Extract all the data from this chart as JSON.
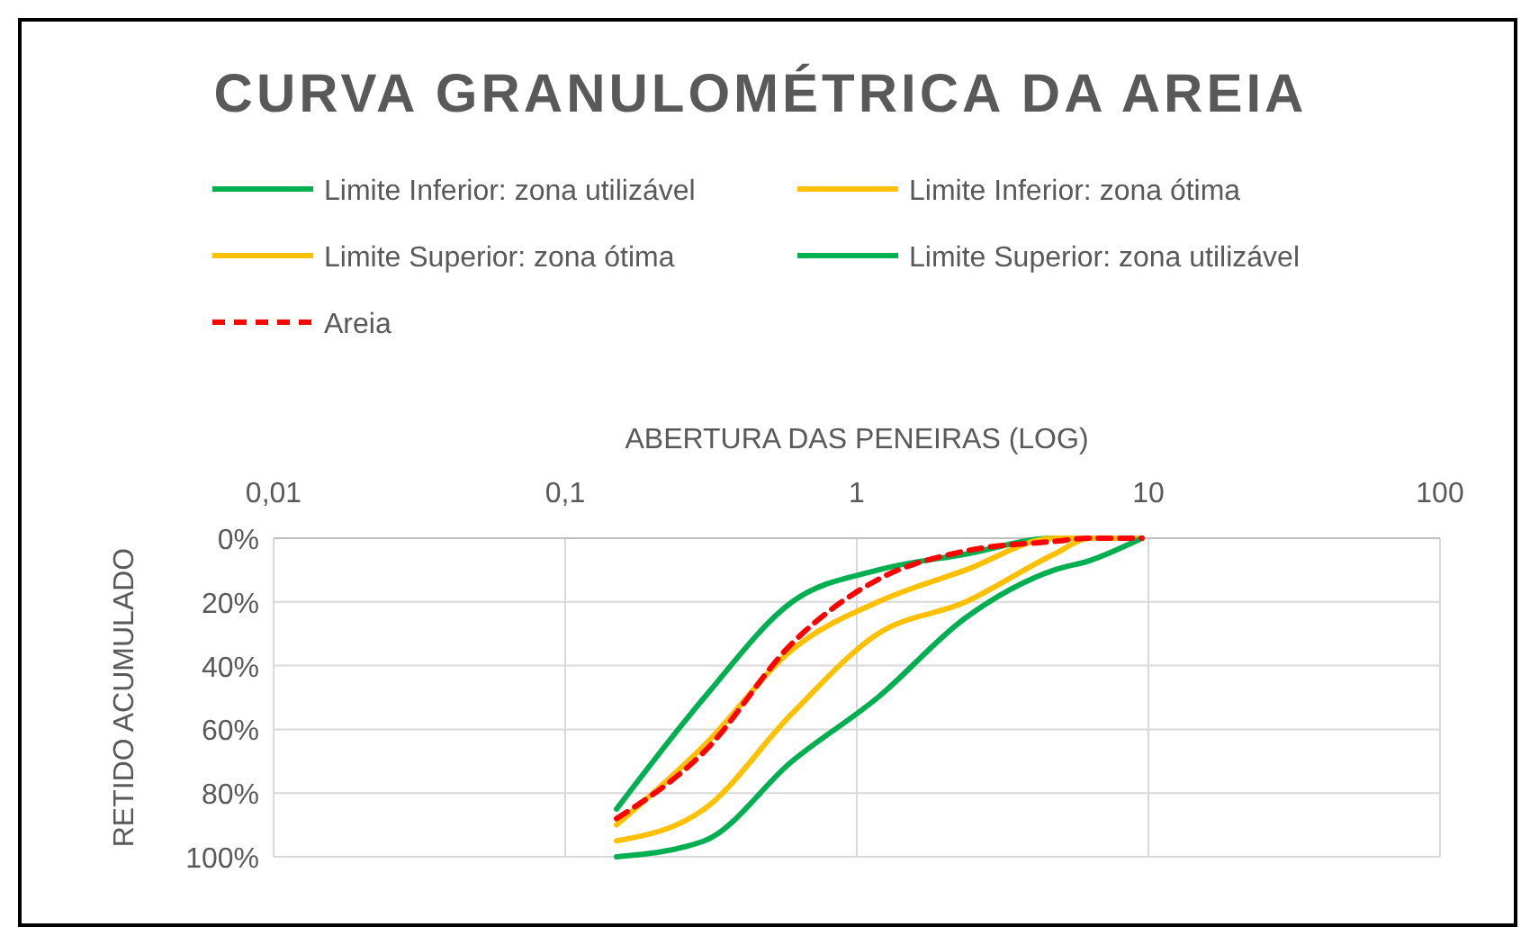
{
  "chart_data": {
    "type": "line",
    "title": "CURVA GRANULOMÉTRICA DA AREIA",
    "xlabel": "ABERTURA DAS PENEIRAS (LOG)",
    "ylabel": "RETIDO ACUMULADO",
    "log": "x",
    "xlim": [
      0.01,
      100
    ],
    "xticks": [
      {
        "value": 0.01,
        "label": "0,01"
      },
      {
        "value": 0.1,
        "label": "0,1"
      },
      1,
      10,
      100
    ],
    "ylim": [
      100,
      0
    ],
    "yticks": [
      {
        "value": 0,
        "label": "0%"
      },
      {
        "value": 20,
        "label": "20%"
      },
      {
        "value": 40,
        "label": "40%"
      },
      {
        "value": 60,
        "label": "60%"
      },
      {
        "value": 80,
        "label": "80%"
      },
      {
        "value": 100,
        "label": "100%"
      }
    ],
    "grid": true,
    "legend": "top",
    "x": [
      0.15,
      0.3,
      0.6,
      1.18,
      2.36,
      4.75,
      6.3,
      9.5
    ],
    "series": [
      {
        "name": "Limite Inferior: zona utilizável",
        "color": "#00b050",
        "values": [
          85,
          50,
          20,
          10,
          5,
          0,
          0,
          0
        ]
      },
      {
        "name": "Limite Inferior: zona ótima",
        "color": "#ffc000",
        "values": [
          90,
          65,
          35,
          20,
          10,
          0,
          0,
          0
        ]
      },
      {
        "name": "Limite Superior: zona ótima",
        "color": "#ffc000",
        "values": [
          95,
          85,
          55,
          30,
          20,
          5,
          0,
          0
        ]
      },
      {
        "name": "Limite Superior: zona utilizável",
        "color": "#00b050",
        "values": [
          100,
          95,
          70,
          50,
          25,
          10,
          7,
          0
        ]
      },
      {
        "name": "Areia",
        "color": "#ff0000",
        "line_style": "dashed",
        "values": [
          88,
          67,
          33,
          13,
          4,
          1,
          0,
          0
        ]
      }
    ]
  }
}
